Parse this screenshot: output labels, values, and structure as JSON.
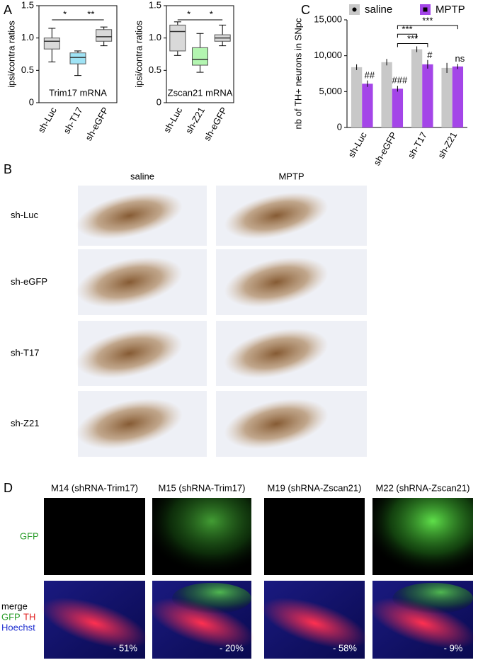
{
  "panel_labels": [
    "A",
    "B",
    "C",
    "D"
  ],
  "chart_data": [
    {
      "type": "box",
      "ylabel": "ipsi/contra ratios",
      "inner_label": "Trim17 mRNA",
      "categories": [
        "sh-Luc",
        "sh-T17",
        "sh-eGFP"
      ],
      "colors": [
        "#d9d9d9",
        "#9fe3f5",
        "#d9d9d9"
      ],
      "min": [
        0.63,
        0.42,
        0.88
      ],
      "q1": [
        0.83,
        0.6,
        0.95
      ],
      "median": [
        0.95,
        0.7,
        1.02
      ],
      "q3": [
        1.0,
        0.77,
        1.13
      ],
      "max": [
        1.15,
        0.8,
        1.17
      ],
      "ylim": [
        0,
        1.5
      ],
      "yticks": [
        0,
        0.5,
        {
          "value": 1,
          "label": "1.0"
        },
        1.5
      ],
      "annotations": [
        "*",
        "**"
      ]
    },
    {
      "type": "box",
      "ylabel": "ipsi/contra ratios",
      "inner_label": "Zscan21 mRNA",
      "categories": [
        "sh-Luc",
        "sh-Z21",
        "sh-eGFP"
      ],
      "colors": [
        "#d9d9d9",
        "#b3f5b0",
        "#d9d9d9"
      ],
      "min": [
        0.73,
        0.47,
        0.88
      ],
      "q1": [
        0.8,
        0.58,
        0.95
      ],
      "median": [
        1.1,
        0.67,
        1.0
      ],
      "q3": [
        1.2,
        0.85,
        1.05
      ],
      "max": [
        1.25,
        1.07,
        1.2
      ],
      "ylim": [
        0,
        1.5
      ],
      "yticks": [
        0,
        0.5,
        {
          "value": 1,
          "label": "1.0"
        },
        1.5
      ],
      "annotations": [
        "*",
        "*"
      ]
    },
    {
      "type": "bar",
      "ylabel": "nb of TH+ neurons in SNpc",
      "categories": [
        "sh-Luc",
        "sh-eGFP",
        "sh-T17",
        "sh-Z21"
      ],
      "series": [
        {
          "name": "saline",
          "color": "#c8c8c8",
          "values": [
            8400,
            9100,
            10900,
            8300
          ],
          "errors": [
            400,
            450,
            400,
            700
          ]
        },
        {
          "name": "MPTP",
          "color": "#a445e8",
          "values": [
            6100,
            5400,
            8800,
            8500
          ],
          "errors": [
            450,
            400,
            600,
            350
          ]
        }
      ],
      "ylim": [
        0,
        15000
      ],
      "yticks": [
        0,
        {
          "value": 5000,
          "label": "5,000"
        },
        {
          "value": 10000,
          "label": "10,000"
        },
        {
          "value": 15000,
          "label": "15,000"
        }
      ],
      "annotations": [
        "##",
        "###",
        "#",
        "ns",
        "***",
        "***",
        "***"
      ]
    }
  ],
  "panel_b": {
    "columns": [
      "saline",
      "MPTP"
    ],
    "rows": [
      "sh-Luc",
      "sh-eGFP",
      "sh-T17",
      "sh-Z21"
    ]
  },
  "panel_d": {
    "columns": [
      "M14 (shRNA-Trim17)",
      "M15 (shRNA-Trim17)",
      "M19 (shRNA-Zscan21)",
      "M22 (shRNA-Zscan21)"
    ],
    "top_row": "GFP",
    "merge": "merge",
    "gfp": "GFP",
    "th": "TH",
    "hoechst": "Hoechst",
    "percentages": [
      "- 51%",
      "- 20%",
      "- 58%",
      "- 9%"
    ]
  }
}
